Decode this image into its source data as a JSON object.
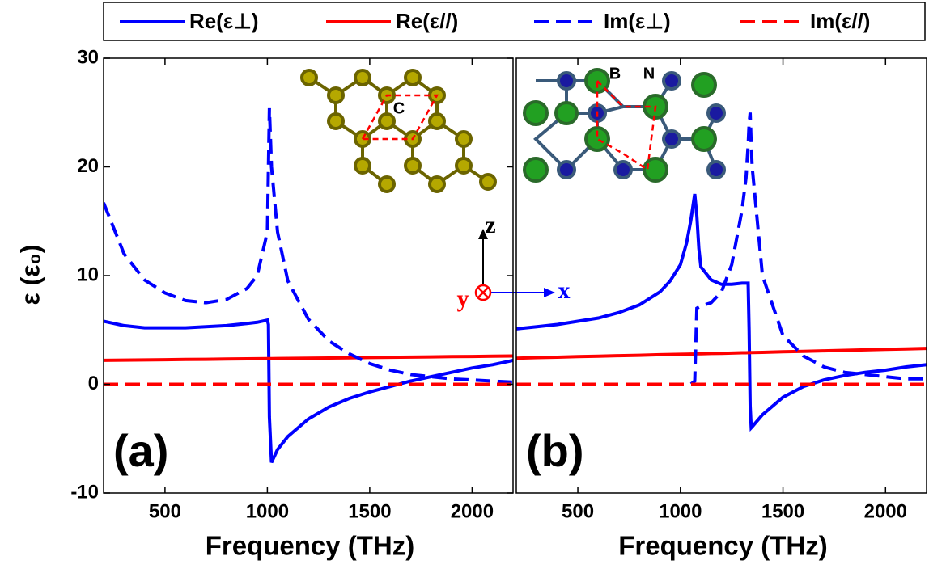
{
  "chart_data": [
    {
      "type": "line",
      "y_label": "ε (ε₀)",
      "x_label": "Frequency (THz)",
      "panel_label": "(a)",
      "annotations": [
        "C",
        "z",
        "y",
        "x"
      ],
      "xlim": [
        200,
        2200
      ],
      "xticks": [
        500,
        1000,
        1500,
        2000
      ],
      "ylim": [
        -10,
        30
      ],
      "yticks": [
        -10,
        0,
        10,
        20,
        30
      ],
      "x": [
        200,
        300,
        400,
        500,
        600,
        700,
        800,
        900,
        950,
        1000,
        1005,
        1010,
        1020,
        1050,
        1100,
        1200,
        1300,
        1400,
        1500,
        1600,
        1700,
        1800,
        1900,
        2000,
        2100,
        2200
      ],
      "series": [
        {
          "name": "Re(ε⊥)",
          "color": "#0000ff",
          "dashed": false,
          "values": [
            5.8,
            5.4,
            5.2,
            5.2,
            5.2,
            5.3,
            5.4,
            5.6,
            5.7,
            5.9,
            5.5,
            -3,
            -7.2,
            -6,
            -4.8,
            -3.2,
            -2.1,
            -1.3,
            -0.7,
            -0.2,
            0.3,
            0.7,
            1.1,
            1.5,
            1.8,
            2.2
          ]
        },
        {
          "name": "Re(ε//)",
          "color": "#ff0000",
          "dashed": false,
          "values": [
            2.2,
            2.22,
            2.24,
            2.26,
            2.28,
            2.3,
            2.32,
            2.34,
            2.35,
            2.36,
            2.36,
            2.36,
            2.36,
            2.37,
            2.38,
            2.4,
            2.42,
            2.44,
            2.46,
            2.48,
            2.5,
            2.52,
            2.54,
            2.56,
            2.58,
            2.6
          ]
        },
        {
          "name": "Im(ε⊥)",
          "color": "#0000ff",
          "dashed": true,
          "values": [
            16.7,
            12,
            9.6,
            8.4,
            7.7,
            7.5,
            7.8,
            8.8,
            10,
            14,
            20,
            25.4,
            20,
            14,
            9.5,
            6,
            4,
            2.8,
            1.9,
            1.3,
            0.9,
            0.7,
            0.5,
            0.4,
            0.3,
            0.2
          ]
        },
        {
          "name": "Im(ε//)",
          "color": "#ff0000",
          "dashed": true,
          "values": [
            0,
            0,
            0,
            0,
            0,
            0,
            0,
            0,
            0,
            0,
            0,
            0,
            0,
            0,
            0,
            0,
            0,
            0,
            0,
            0,
            0,
            0,
            0,
            0,
            0,
            0
          ]
        }
      ]
    },
    {
      "type": "line",
      "x_label": "Frequency (THz)",
      "panel_label": "(b)",
      "annotations": [
        "B",
        "N"
      ],
      "xlim": [
        200,
        2200
      ],
      "xticks": [
        500,
        1000,
        1500,
        2000
      ],
      "ylim": [
        -10,
        30
      ],
      "x": [
        200,
        300,
        400,
        500,
        600,
        700,
        800,
        900,
        950,
        1000,
        1030,
        1050,
        1070,
        1080,
        1090,
        1100,
        1150,
        1200,
        1250,
        1300,
        1320,
        1330,
        1335,
        1340,
        1345,
        1350,
        1400,
        1500,
        1600,
        1700,
        1800,
        1900,
        2000,
        2100,
        2200
      ],
      "series": [
        {
          "color": "#0000ff",
          "dashed": false,
          "values": [
            5.1,
            5.3,
            5.5,
            5.8,
            6.1,
            6.6,
            7.3,
            8.5,
            9.5,
            11,
            13,
            15,
            17.5,
            15.5,
            12.5,
            10.8,
            9.6,
            9.2,
            9.2,
            9.3,
            9.3,
            9.3,
            5,
            -2,
            -4,
            -3.9,
            -2.8,
            -1.2,
            -0.2,
            0.4,
            0.8,
            1.1,
            1.3,
            1.6,
            1.8
          ]
        },
        {
          "color": "#ff0000",
          "dashed": false,
          "values": [
            2.4,
            2.45,
            2.49,
            2.54,
            2.58,
            2.63,
            2.67,
            2.72,
            2.74,
            2.76,
            2.77,
            2.78,
            2.79,
            2.8,
            2.8,
            2.81,
            2.83,
            2.85,
            2.87,
            2.9,
            2.9,
            2.91,
            2.91,
            2.91,
            2.92,
            2.92,
            2.94,
            2.99,
            3.03,
            3.08,
            3.12,
            3.17,
            3.21,
            3.26,
            3.3
          ]
        },
        {
          "color": "#0000ff",
          "dashed": true,
          "values": [
            0,
            0,
            0,
            0,
            0,
            0,
            0,
            0,
            0,
            0,
            0,
            0,
            0.3,
            7,
            7.1,
            7.2,
            7.5,
            8.5,
            11,
            16,
            19,
            22,
            24,
            25,
            22,
            20,
            10,
            4.5,
            2.6,
            1.6,
            1.1,
            0.9,
            0.7,
            0.5,
            0.5
          ]
        },
        {
          "color": "#ff0000",
          "dashed": true,
          "values": [
            0,
            0,
            0,
            0,
            0,
            0,
            0,
            0,
            0,
            0,
            0,
            0,
            0,
            0,
            0,
            0,
            0,
            0,
            0,
            0,
            0,
            0,
            0,
            0,
            0,
            0,
            0,
            0,
            0,
            0,
            0,
            0,
            0,
            0,
            0
          ]
        }
      ]
    }
  ]
}
